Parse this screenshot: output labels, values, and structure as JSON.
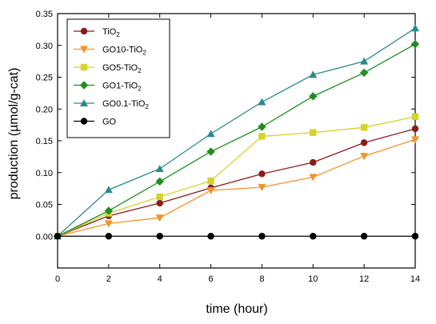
{
  "chart_data": {
    "type": "line",
    "xlabel": "time (hour)",
    "ylabel": "production (µmol/g-cat)",
    "xlim": [
      0,
      14
    ],
    "ylim": [
      -0.05,
      0.35
    ],
    "x_ticks": [
      "0",
      "2",
      "4",
      "6",
      "8",
      "10",
      "12",
      "14"
    ],
    "y_ticks": [
      "0.00",
      "0.05",
      "0.10",
      "0.15",
      "0.20",
      "0.25",
      "0.30",
      "0.35"
    ],
    "grid": false,
    "legend_position": "top-left",
    "x": [
      0,
      2,
      4,
      6,
      8,
      10,
      12,
      14
    ],
    "series": [
      {
        "name": "TiO2",
        "label_main": "TiO",
        "label_sub": "2",
        "label_tail": "",
        "marker": "circle",
        "color": "#8b1a1a",
        "values": [
          0.0,
          0.032,
          0.052,
          0.076,
          0.098,
          0.116,
          0.147,
          0.169
        ]
      },
      {
        "name": "GO10-TiO2",
        "label_main": "GO10-TiO",
        "label_sub": "2",
        "label_tail": "",
        "marker": "triangle-down",
        "color": "#f7922a",
        "values": [
          0.0,
          0.02,
          0.029,
          0.072,
          0.077,
          0.093,
          0.126,
          0.152
        ]
      },
      {
        "name": "GO5-TiO2",
        "label_main": "GO5-TiO",
        "label_sub": "2",
        "label_tail": "",
        "marker": "square",
        "color": "#d4d42a",
        "values": [
          0.0,
          0.036,
          0.062,
          0.087,
          0.157,
          0.163,
          0.171,
          0.188
        ]
      },
      {
        "name": "GO1-TiO2",
        "label_main": "GO1-TiO",
        "label_sub": "2",
        "label_tail": "",
        "marker": "diamond",
        "color": "#1f8f1f",
        "values": [
          0.0,
          0.04,
          0.086,
          0.133,
          0.172,
          0.22,
          0.257,
          0.302
        ]
      },
      {
        "name": "GO0.1-TiO2",
        "label_main": "GO0.1-TiO",
        "label_sub": "2",
        "label_tail": "",
        "marker": "triangle-up",
        "color": "#2a8a8a",
        "values": [
          0.0,
          0.073,
          0.106,
          0.161,
          0.211,
          0.254,
          0.275,
          0.327
        ]
      },
      {
        "name": "GO",
        "label_main": "GO",
        "label_sub": "",
        "label_tail": "",
        "marker": "circle",
        "color": "#000000",
        "values": [
          0.0,
          0.0,
          0.0,
          0.0,
          0.0,
          0.0,
          0.0,
          0.0
        ]
      }
    ]
  }
}
